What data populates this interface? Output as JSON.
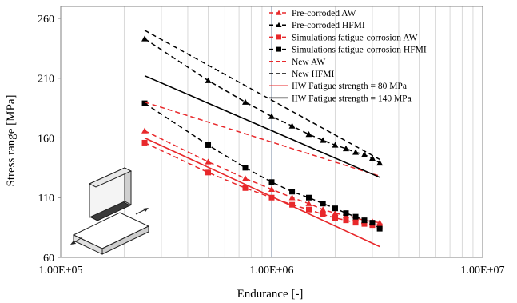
{
  "chart_data": {
    "type": "line",
    "xlabel": "Endurance [-]",
    "ylabel": "Stress range [MPa]",
    "x_scale": "log",
    "xlim": [
      100000,
      10000000
    ],
    "ylim": [
      60,
      270
    ],
    "x_tick_labels": [
      "1.00E+05",
      "1.00E+06",
      "1.00E+07"
    ],
    "y_ticks": [
      60,
      110,
      160,
      210,
      260
    ],
    "grid": "log-x vertical gridlines",
    "legend_position": "top-right",
    "series": [
      {
        "name": "Pre-corroded AW",
        "color": "#e8282b",
        "line": "dashed",
        "marker": "triangle",
        "x": [
          250000,
          500000,
          750000,
          1000000,
          1250000,
          1500000,
          1750000,
          2000000,
          2250000,
          2500000,
          2750000,
          3000000,
          3250000
        ],
        "y": [
          166,
          140,
          126,
          117,
          110,
          105,
          100,
          97,
          95,
          93,
          91,
          90,
          89
        ]
      },
      {
        "name": "Pre-corroded HFMI",
        "color": "#000000",
        "line": "dashed",
        "marker": "triangle",
        "x": [
          250000,
          500000,
          750000,
          1000000,
          1250000,
          1500000,
          1750000,
          2000000,
          2250000,
          2500000,
          2750000,
          3000000,
          3250000
        ],
        "y": [
          243,
          208,
          190,
          178,
          170,
          163,
          158,
          154,
          151,
          148,
          146,
          143,
          139
        ]
      },
      {
        "name": "Simulations fatigue-corrosion AW",
        "color": "#e8282b",
        "line": "dashed",
        "marker": "square",
        "x": [
          250000,
          500000,
          750000,
          1000000,
          1250000,
          1500000,
          1750000,
          2000000,
          2250000,
          2500000,
          2750000,
          3000000,
          3250000
        ],
        "y": [
          156,
          131,
          118,
          110,
          104,
          100,
          96,
          93,
          91,
          89,
          88,
          87,
          86
        ]
      },
      {
        "name": "Simulations fatigue-corrosion HFMI",
        "color": "#000000",
        "line": "dashed",
        "marker": "square",
        "x": [
          250000,
          500000,
          750000,
          1000000,
          1250000,
          1500000,
          1750000,
          2000000,
          2250000,
          2500000,
          2750000,
          3000000,
          3250000
        ],
        "y": [
          189,
          154,
          135,
          123,
          115,
          110,
          105,
          101,
          97,
          94,
          91,
          89,
          84
        ]
      },
      {
        "name": "New AW",
        "color": "#e8282b",
        "line": "dashed",
        "marker": "none",
        "x": [
          250000,
          3250000
        ],
        "y": [
          190,
          128
        ]
      },
      {
        "name": "New HFMI",
        "color": "#000000",
        "line": "dashed",
        "marker": "none",
        "x": [
          250000,
          3250000
        ],
        "y": [
          250,
          142
        ]
      },
      {
        "name": "IIW Fatigue strength = 80 MPa",
        "color": "#e8282b",
        "line": "solid",
        "marker": "none",
        "x": [
          250000,
          3250000
        ],
        "y": [
          160,
          69
        ]
      },
      {
        "name": "IIW Fatigue strength = 140 MPa",
        "color": "#000000",
        "line": "solid",
        "marker": "none",
        "x": [
          250000,
          3250000
        ],
        "y": [
          212,
          127
        ]
      }
    ]
  }
}
